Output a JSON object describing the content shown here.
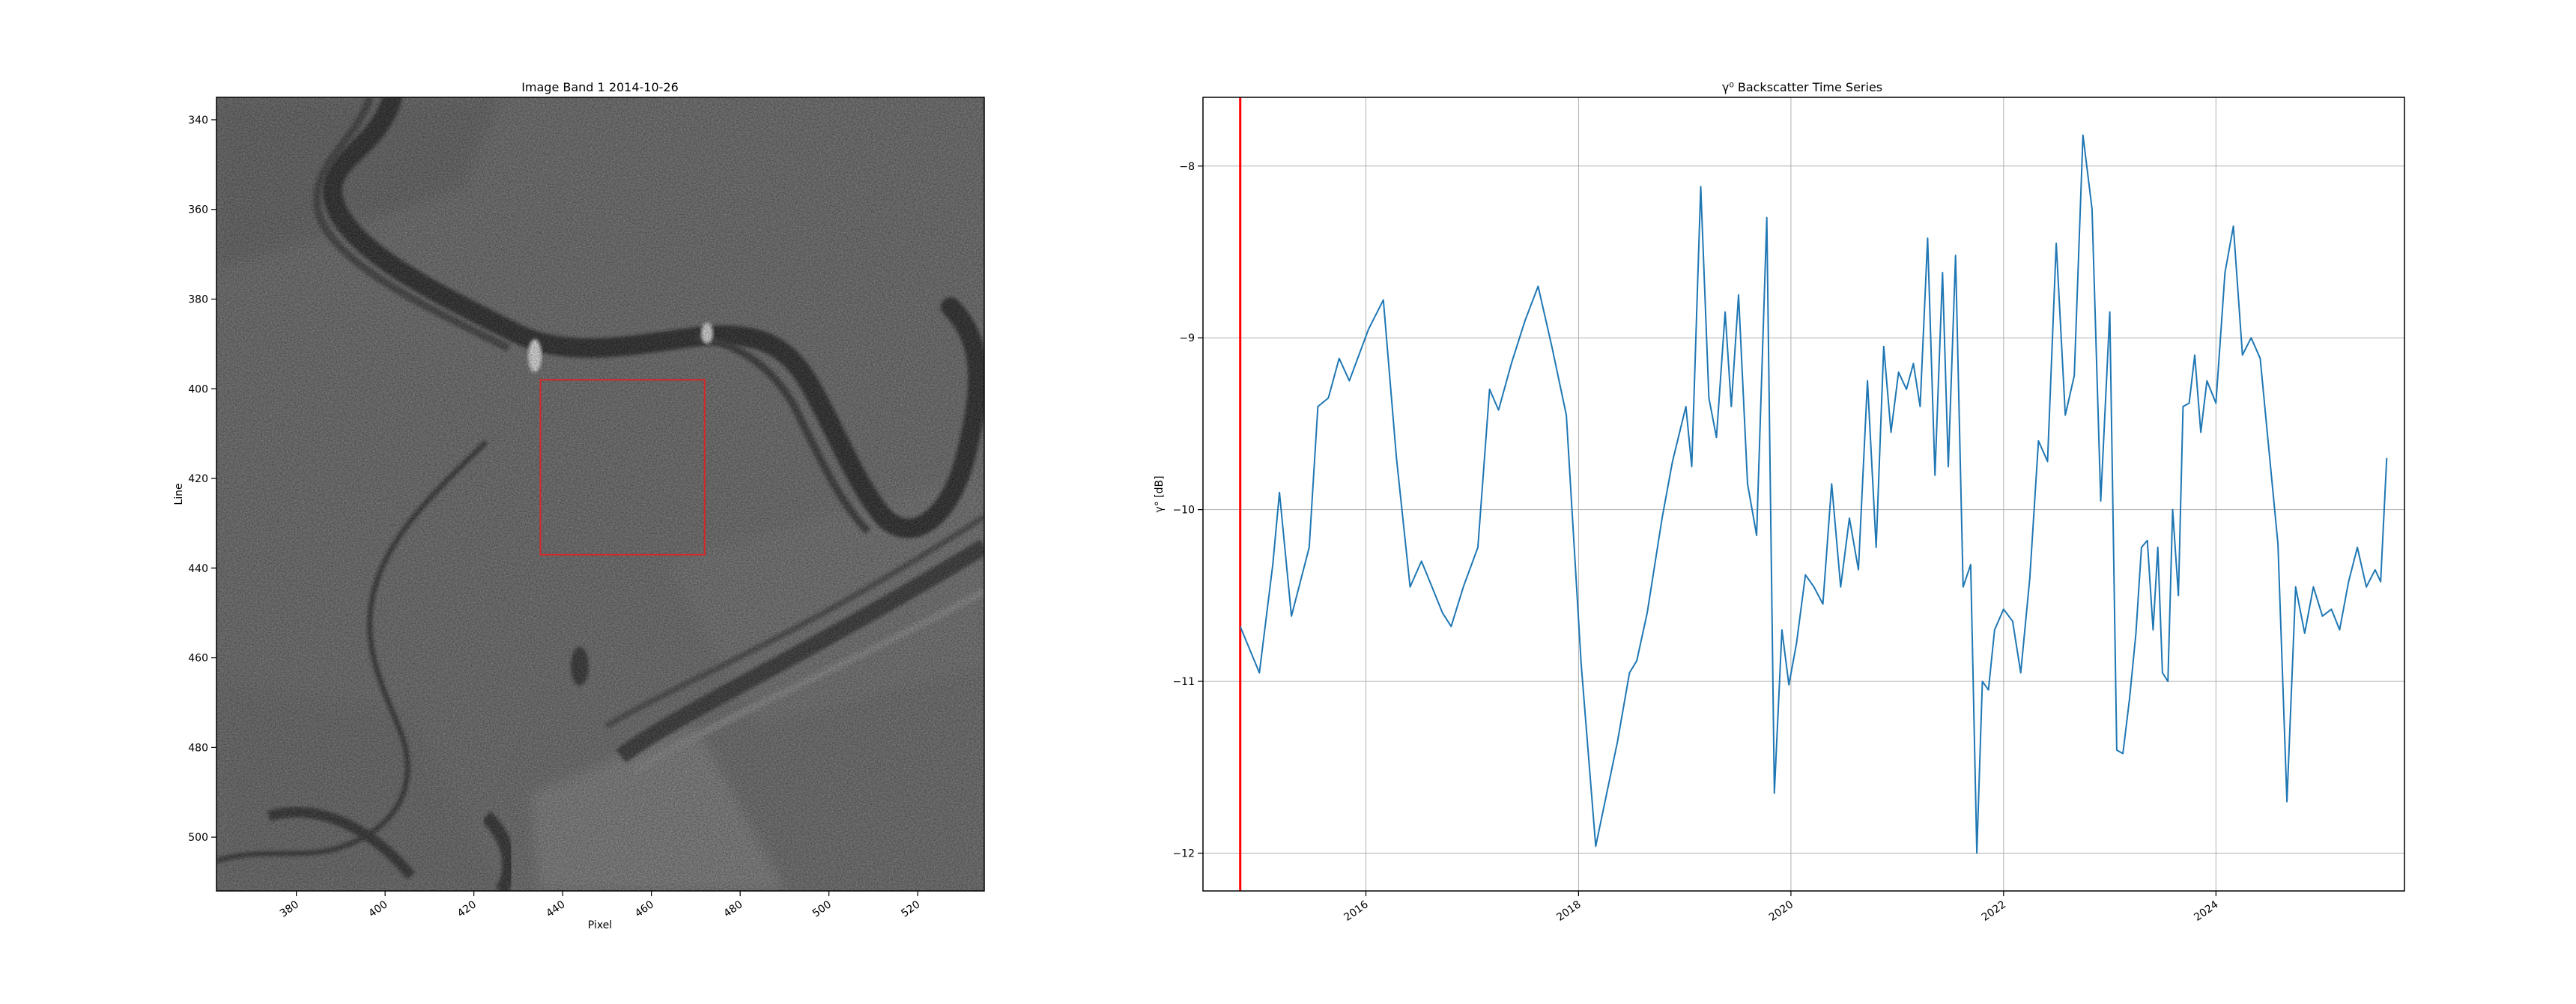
{
  "chart_data": [
    {
      "type": "heatmap",
      "title": "Image Band 1 2014-10-26",
      "xlabel": "Pixel",
      "ylabel": "Line",
      "xlim": [
        362,
        535
      ],
      "ylim": [
        512,
        335
      ],
      "xticks": [
        380,
        400,
        420,
        440,
        460,
        480,
        500,
        520
      ],
      "yticks": [
        340,
        360,
        380,
        400,
        420,
        440,
        460,
        480,
        500
      ],
      "colormap": "gray",
      "roi_box": {
        "x0": 435,
        "x1": 472,
        "y0": 398,
        "y1": 437,
        "color": "#d62728"
      }
    },
    {
      "type": "line",
      "title": "γ⁰ Backscatter Time Series",
      "xlabel": "",
      "ylabel": "γ° [dB]",
      "x_type": "date",
      "xlim": [
        "2014-06-20",
        "2025-10-10"
      ],
      "ylim": [
        -12.22,
        -7.6
      ],
      "grid": true,
      "xticks": [
        "2016",
        "2018",
        "2020",
        "2022",
        "2024"
      ],
      "yticks": [
        -12,
        -11,
        -10,
        -9,
        -8
      ],
      "line_color": "#1f77b4",
      "marker_date": "2014-10-26",
      "marker_color": "#ff0000",
      "series": [
        {
          "values": [
            [
              "2014-10-26",
              -10.68
            ],
            [
              "2014-12-31",
              -10.95
            ],
            [
              "2015-02-15",
              -10.32
            ],
            [
              "2015-03-10",
              -9.9
            ],
            [
              "2015-04-20",
              -10.62
            ],
            [
              "2015-06-20",
              -10.22
            ],
            [
              "2015-07-20",
              -9.4
            ],
            [
              "2015-08-25",
              -9.35
            ],
            [
              "2015-10-01",
              -9.12
            ],
            [
              "2015-11-05",
              -9.25
            ],
            [
              "2016-01-10",
              -8.95
            ],
            [
              "2016-03-01",
              -8.78
            ],
            [
              "2016-04-15",
              -9.7
            ],
            [
              "2016-06-01",
              -10.45
            ],
            [
              "2016-07-10",
              -10.3
            ],
            [
              "2016-08-15",
              -10.45
            ],
            [
              "2016-09-20",
              -10.6
            ],
            [
              "2016-10-20",
              -10.68
            ],
            [
              "2016-12-01",
              -10.45
            ],
            [
              "2017-01-20",
              -10.22
            ],
            [
              "2017-03-01",
              -9.3
            ],
            [
              "2017-04-01",
              -9.42
            ],
            [
              "2017-05-15",
              -9.15
            ],
            [
              "2017-07-01",
              -8.9
            ],
            [
              "2017-08-15",
              -8.7
            ],
            [
              "2017-10-01",
              -9.05
            ],
            [
              "2017-11-20",
              -9.45
            ],
            [
              "2018-01-10",
              -10.9
            ],
            [
              "2018-03-01",
              -11.96
            ],
            [
              "2018-05-15",
              -11.35
            ],
            [
              "2018-06-25",
              -10.95
            ],
            [
              "2018-07-20",
              -10.88
            ],
            [
              "2018-08-25",
              -10.6
            ],
            [
              "2018-10-15",
              -10.05
            ],
            [
              "2018-11-20",
              -9.72
            ],
            [
              "2019-01-05",
              -9.4
            ],
            [
              "2019-01-25",
              -9.75
            ],
            [
              "2019-02-25",
              -8.12
            ],
            [
              "2019-03-25",
              -9.35
            ],
            [
              "2019-04-20",
              -9.58
            ],
            [
              "2019-05-20",
              -8.85
            ],
            [
              "2019-06-10",
              -9.4
            ],
            [
              "2019-07-05",
              -8.75
            ],
            [
              "2019-08-05",
              -9.85
            ],
            [
              "2019-09-05",
              -10.15
            ],
            [
              "2019-10-10",
              -8.3
            ],
            [
              "2019-11-05",
              -11.65
            ],
            [
              "2019-12-01",
              -10.7
            ],
            [
              "2019-12-25",
              -11.02
            ],
            [
              "2020-01-20",
              -10.78
            ],
            [
              "2020-02-20",
              -10.38
            ],
            [
              "2020-03-20",
              -10.45
            ],
            [
              "2020-04-20",
              -10.55
            ],
            [
              "2020-05-20",
              -9.85
            ],
            [
              "2020-06-20",
              -10.45
            ],
            [
              "2020-07-20",
              -10.05
            ],
            [
              "2020-08-20",
              -10.35
            ],
            [
              "2020-09-20",
              -9.25
            ],
            [
              "2020-10-20",
              -10.22
            ],
            [
              "2020-11-15",
              -9.05
            ],
            [
              "2020-12-10",
              -9.55
            ],
            [
              "2021-01-05",
              -9.2
            ],
            [
              "2021-02-01",
              -9.3
            ],
            [
              "2021-02-25",
              -9.15
            ],
            [
              "2021-03-20",
              -9.4
            ],
            [
              "2021-04-15",
              -8.42
            ],
            [
              "2021-05-10",
              -9.8
            ],
            [
              "2021-06-05",
              -8.62
            ],
            [
              "2021-06-25",
              -9.75
            ],
            [
              "2021-07-20",
              -8.52
            ],
            [
              "2021-08-15",
              -10.45
            ],
            [
              "2021-09-10",
              -10.32
            ],
            [
              "2021-10-01",
              -12.0
            ],
            [
              "2021-10-20",
              -11.0
            ],
            [
              "2021-11-10",
              -11.05
            ],
            [
              "2021-12-01",
              -10.7
            ],
            [
              "2022-01-01",
              -10.58
            ],
            [
              "2022-02-01",
              -10.65
            ],
            [
              "2022-03-01",
              -10.95
            ],
            [
              "2022-04-01",
              -10.4
            ],
            [
              "2022-05-01",
              -9.6
            ],
            [
              "2022-06-01",
              -9.72
            ],
            [
              "2022-07-01",
              -8.45
            ],
            [
              "2022-08-01",
              -9.45
            ],
            [
              "2022-09-01",
              -9.22
            ],
            [
              "2022-10-01",
              -7.82
            ],
            [
              "2022-11-01",
              -8.25
            ],
            [
              "2022-12-01",
              -9.95
            ],
            [
              "2023-01-01",
              -8.85
            ],
            [
              "2023-01-25",
              -11.4
            ],
            [
              "2023-02-15",
              -11.42
            ],
            [
              "2023-03-10",
              -11.1
            ],
            [
              "2023-04-01",
              -10.72
            ],
            [
              "2023-04-20",
              -10.22
            ],
            [
              "2023-05-10",
              -10.18
            ],
            [
              "2023-05-30",
              -10.7
            ],
            [
              "2023-06-15",
              -10.22
            ],
            [
              "2023-07-01",
              -10.95
            ],
            [
              "2023-07-20",
              -11.0
            ],
            [
              "2023-08-05",
              -10.0
            ],
            [
              "2023-08-25",
              -10.5
            ],
            [
              "2023-09-10",
              -9.4
            ],
            [
              "2023-10-01",
              -9.38
            ],
            [
              "2023-10-20",
              -9.1
            ],
            [
              "2023-11-10",
              -9.55
            ],
            [
              "2023-12-01",
              -9.25
            ],
            [
              "2024-01-01",
              -9.38
            ],
            [
              "2024-02-01",
              -8.62
            ],
            [
              "2024-03-01",
              -8.35
            ],
            [
              "2024-04-01",
              -9.1
            ],
            [
              "2024-05-01",
              -9.0
            ],
            [
              "2024-06-01",
              -9.12
            ],
            [
              "2024-07-01",
              -9.65
            ],
            [
              "2024-08-01",
              -10.2
            ],
            [
              "2024-09-01",
              -11.7
            ],
            [
              "2024-10-01",
              -10.45
            ],
            [
              "2024-11-01",
              -10.72
            ],
            [
              "2024-12-01",
              -10.45
            ],
            [
              "2025-01-01",
              -10.62
            ],
            [
              "2025-02-01",
              -10.58
            ],
            [
              "2025-03-01",
              -10.7
            ],
            [
              "2025-04-01",
              -10.42
            ],
            [
              "2025-05-01",
              -10.22
            ],
            [
              "2025-06-01",
              -10.45
            ],
            [
              "2025-07-01",
              -10.35
            ],
            [
              "2025-07-20",
              -10.42
            ],
            [
              "2025-08-10",
              -9.7
            ]
          ]
        }
      ]
    }
  ]
}
